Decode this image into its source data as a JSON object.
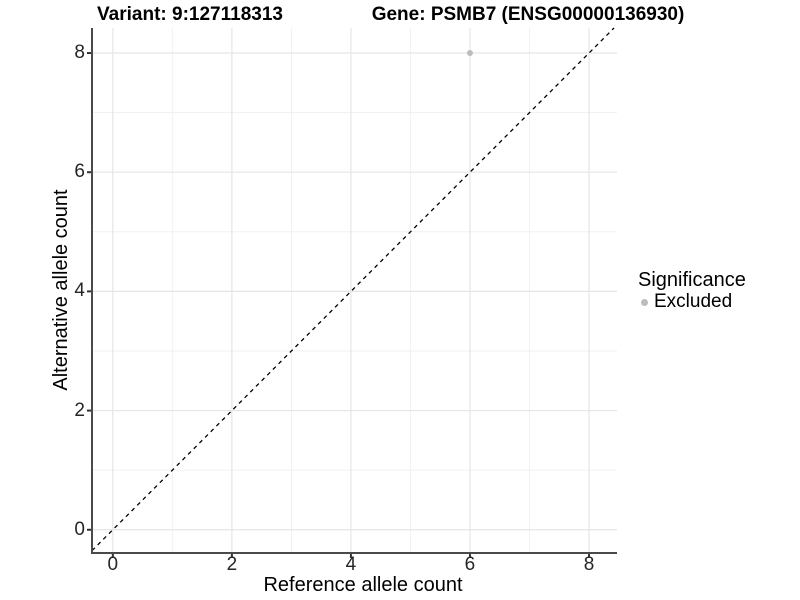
{
  "chart_data": {
    "type": "scatter",
    "titles": {
      "variant": "Variant: 9:127118313",
      "gene": "Gene: PSMB7 (ENSG00000136930)"
    },
    "xlabel": "Reference allele count",
    "ylabel": "Alternative allele count",
    "xlim": [
      -0.35,
      8.47
    ],
    "ylim": [
      -0.39,
      8.42
    ],
    "xticks": [
      0,
      2,
      4,
      6,
      8
    ],
    "yticks": [
      0,
      2,
      4,
      6,
      8
    ],
    "minor_xticks": [
      1,
      3,
      5,
      7
    ],
    "minor_yticks": [
      1,
      3,
      5,
      7
    ],
    "grid": true,
    "identity_line": {
      "slope": 1,
      "intercept": 0,
      "style": "dashed",
      "color": "#000000"
    },
    "series": [
      {
        "name": "Excluded",
        "color": "#bcbcbc",
        "points": [
          {
            "x": 6,
            "y": 8
          }
        ]
      }
    ],
    "legend": {
      "title": "Significance",
      "position": "right",
      "items": [
        {
          "label": "Excluded",
          "color": "#bcbcbc"
        }
      ]
    },
    "colors": {
      "major_grid": "#e5e5e5",
      "minor_grid": "#f1f1f1",
      "axis_line": "#4a4a4a",
      "tick_mark": "#333333",
      "tick_label": "#262626",
      "text": "#000000"
    }
  }
}
